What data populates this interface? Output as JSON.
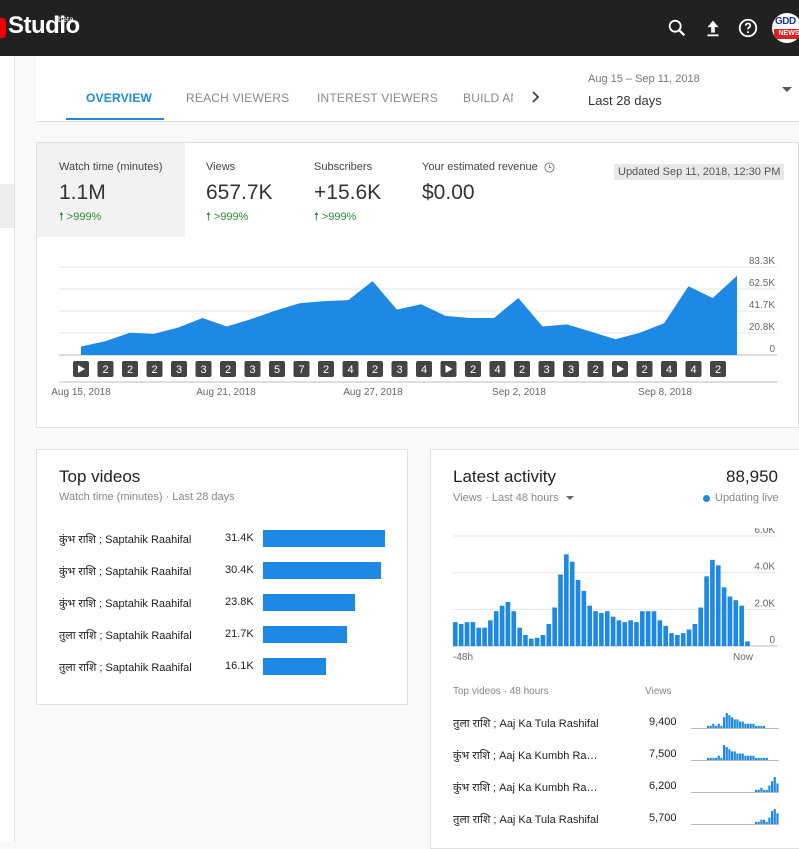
{
  "header": {
    "app_name": "Studio",
    "beta": "beta",
    "avatar_line1": "GDD",
    "avatar_line2": "NEWS",
    "icons": [
      "search-icon",
      "upload-icon",
      "help-icon"
    ]
  },
  "tabs": [
    {
      "label": "OVERVIEW",
      "active": true
    },
    {
      "label": "REACH VIEWERS",
      "active": false
    },
    {
      "label": "INTEREST VIEWERS",
      "active": false
    },
    {
      "label": "BUILD AN",
      "active": false
    }
  ],
  "date_range": {
    "range": "Aug 15 – Sep 11, 2018",
    "label": "Last 28 days"
  },
  "metrics": [
    {
      "label": "Watch time (minutes)",
      "value": "1.1M",
      "change": ">999%",
      "active": true
    },
    {
      "label": "Views",
      "value": "657.7K",
      "change": ">999%",
      "active": false
    },
    {
      "label": "Subscribers",
      "value": "+15.6K",
      "change": ">999%",
      "active": false
    },
    {
      "label": "Your estimated revenue",
      "value": "$0.00",
      "change": "",
      "active": false
    }
  ],
  "updated": "Updated Sep 11, 2018, 12:30 PM",
  "accent_color": "#1e88e5",
  "chart_data": [
    {
      "type": "area",
      "x": [
        "Aug 15, 2018",
        "Aug 16",
        "Aug 17",
        "Aug 18",
        "Aug 19",
        "Aug 20",
        "Aug 21, 2018",
        "Aug 22",
        "Aug 23",
        "Aug 24",
        "Aug 25",
        "Aug 26",
        "Aug 27, 2018",
        "Aug 28",
        "Aug 29",
        "Aug 30",
        "Aug 31",
        "Sep 1",
        "Sep 2, 2018",
        "Sep 3",
        "Sep 4",
        "Sep 5",
        "Sep 6",
        "Sep 7",
        "Sep 8, 2018",
        "Sep 9",
        "Sep 10",
        "Sep 11"
      ],
      "x_tick_labels": [
        "Aug 15, 2018",
        "Aug 21, 2018",
        "Aug 27, 2018",
        "Sep 2, 2018",
        "Sep 8, 2018"
      ],
      "y_tick_labels": [
        "83.3K",
        "62.5K",
        "41.7K",
        "20.8K",
        "0"
      ],
      "ylim": [
        0,
        83300
      ],
      "values": [
        8000,
        13000,
        21000,
        20000,
        26000,
        35000,
        27000,
        34000,
        42000,
        49000,
        51000,
        52000,
        70000,
        43000,
        48000,
        37000,
        35000,
        35000,
        54000,
        27000,
        29000,
        22000,
        15000,
        21000,
        30000,
        65000,
        54000,
        75000
      ],
      "markers": [
        "play",
        "2",
        "2",
        "2",
        "3",
        "3",
        "2",
        "3",
        "5",
        "7",
        "2",
        "4",
        "2",
        "3",
        "4",
        "play",
        "2",
        "4",
        "2",
        "3",
        "3",
        "2",
        "play",
        "2",
        "4",
        "4",
        "2"
      ]
    },
    {
      "type": "bar",
      "x_labels": [
        "-48h",
        "Now"
      ],
      "y_tick_labels": [
        "6.0K",
        "4.0K",
        "2.0K",
        "0"
      ],
      "ylim": [
        0,
        6000
      ],
      "values": [
        1300,
        1200,
        1300,
        1300,
        1000,
        1000,
        1400,
        1900,
        2200,
        2400,
        1900,
        1000,
        600,
        400,
        450,
        600,
        1200,
        2100,
        3900,
        5000,
        4600,
        3600,
        3000,
        2200,
        1900,
        1800,
        1900,
        1600,
        1400,
        1300,
        1400,
        1300,
        1900,
        1900,
        1900,
        1400,
        1100,
        700,
        600,
        700,
        900,
        1200,
        2100,
        3800,
        4700,
        4400,
        3200,
        2700,
        2500,
        2200,
        250
      ]
    }
  ],
  "top_videos": {
    "title": "Top videos",
    "subtitle": "Watch time (minutes) · Last 28 days",
    "rows": [
      {
        "title": "कुंभ राशि ; Saptahik Raahifal",
        "value": "31.4K",
        "amount": 31.4
      },
      {
        "title": "कुंभ राशि ; Saptahik Raahifal",
        "value": "30.4K",
        "amount": 30.4
      },
      {
        "title": "कुंभ राशि ; Saptahik Raahifal",
        "value": "23.8K",
        "amount": 23.8
      },
      {
        "title": "तुला राशि ; Saptahik Raahifal",
        "value": "21.7K",
        "amount": 21.7
      },
      {
        "title": "तुला राशि ; Saptahik Raahifal",
        "value": "16.1K",
        "amount": 16.1
      }
    ]
  },
  "latest_activity": {
    "title": "Latest activity",
    "count": "88,950",
    "subtitle": "Views · Last 48 hours",
    "live": "Updating live",
    "top_videos_label": "Top videos · 48 hours",
    "views_label": "Views",
    "rows": [
      {
        "title": "तुला राशि ; Aaj Ka Tula Rashifal",
        "value": "9,400",
        "spark": [
          0,
          0,
          0,
          0,
          0,
          0,
          1,
          1,
          2,
          1,
          2,
          1,
          5,
          7,
          6,
          5,
          4,
          4,
          3,
          3,
          2,
          2,
          2,
          2,
          1,
          1,
          1,
          1,
          0,
          0,
          0,
          0,
          0
        ]
      },
      {
        "title": "कुंभ राशि ; Aaj Ka Kumbh Rashifal",
        "value": "7,500",
        "spark": [
          0,
          0,
          0,
          0,
          0,
          0,
          1,
          1,
          1,
          1,
          2,
          1,
          7,
          6,
          5,
          4,
          4,
          3,
          3,
          3,
          2,
          2,
          2,
          2,
          1,
          1,
          1,
          1,
          1,
          0,
          0,
          0,
          0
        ]
      },
      {
        "title": "कुंभ राशि ; Aaj Ka Kumbh Rashifal",
        "value": "6,200",
        "spark": [
          0,
          0,
          0,
          0,
          0,
          0,
          0,
          0,
          0,
          0,
          0,
          0,
          0,
          0,
          0,
          0,
          0,
          0,
          0,
          0,
          0,
          0,
          0,
          0,
          1,
          1,
          2,
          1,
          1,
          3,
          5,
          7,
          4
        ]
      },
      {
        "title": "तुला राशि ; Aaj Ka Tula Rashifal",
        "value": "5,700",
        "spark": [
          0,
          0,
          0,
          0,
          0,
          0,
          0,
          0,
          0,
          0,
          0,
          0,
          0,
          0,
          0,
          0,
          0,
          0,
          0,
          0,
          0,
          0,
          0,
          0,
          1,
          1,
          2,
          2,
          1,
          3,
          6,
          7,
          5
        ]
      }
    ]
  }
}
